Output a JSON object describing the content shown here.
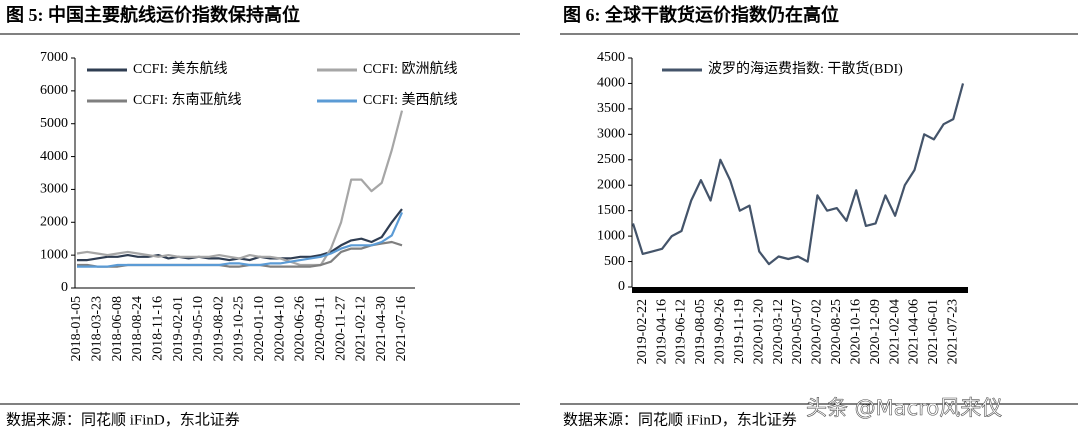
{
  "chart_data": [
    {
      "type": "line",
      "title": "图 5:  中国主要航线运价指数保持高位",
      "source": "数据来源：同花顺 iFinD，东北证券",
      "categories": [
        "2018-01-05",
        null,
        "2018-03-23",
        null,
        "2018-06-08",
        null,
        "2018-08-24",
        null,
        "2018-11-16",
        null,
        "2019-02-01",
        null,
        "2019-05-10",
        null,
        "2019-08-02",
        null,
        "2019-10-25",
        null,
        "2020-01-10",
        null,
        "2020-04-10",
        null,
        "2020-06-26",
        null,
        "2020-09-11",
        null,
        "2020-11-27",
        null,
        "2021-02-12",
        null,
        "2021-04-30",
        null,
        "2021-07-16"
      ],
      "series": [
        {
          "name": "CCFI: 美东航线",
          "color": "#2f3d52",
          "values": [
            850,
            850,
            900,
            950,
            950,
            1000,
            950,
            950,
            1000,
            900,
            950,
            900,
            950,
            900,
            900,
            850,
            900,
            850,
            950,
            900,
            900,
            900,
            950,
            950,
            1000,
            1100,
            1300,
            1450,
            1500,
            1400,
            1550,
            2000,
            2400
          ]
        },
        {
          "name": "CCFI: 欧洲航线",
          "color": "#a6a6a6",
          "values": [
            1050,
            1100,
            1050,
            1000,
            1050,
            1100,
            1050,
            1000,
            950,
            1000,
            950,
            950,
            950,
            950,
            1000,
            950,
            900,
            1000,
            950,
            950,
            900,
            800,
            700,
            700,
            700,
            1200,
            2000,
            3300,
            3300,
            2950,
            3200,
            4200,
            5400
          ]
        },
        {
          "name": "CCFI: 东南亚航线",
          "color": "#7f7f7f",
          "values": [
            700,
            700,
            650,
            650,
            650,
            700,
            700,
            700,
            700,
            700,
            700,
            700,
            700,
            700,
            700,
            650,
            650,
            700,
            700,
            650,
            650,
            650,
            650,
            650,
            700,
            800,
            1100,
            1200,
            1200,
            1300,
            1350,
            1400,
            1300
          ]
        },
        {
          "name": "CCFI: 美西航线",
          "color": "#5b9bd5",
          "values": [
            650,
            650,
            650,
            650,
            700,
            700,
            700,
            700,
            700,
            700,
            700,
            700,
            700,
            700,
            700,
            750,
            750,
            700,
            700,
            750,
            750,
            800,
            850,
            900,
            950,
            1050,
            1200,
            1300,
            1300,
            1300,
            1400,
            1600,
            2300
          ]
        }
      ],
      "ylim": [
        0,
        7000
      ],
      "yticks": [
        0,
        1000,
        2000,
        3000,
        4000,
        5000,
        6000,
        7000
      ],
      "legend": "top-left"
    },
    {
      "type": "line",
      "title": "图 6:  全球干散货运价指数仍在高位",
      "source": "数据来源：同花顺 iFinD，东北证券",
      "categories": [
        null,
        "2019-02-22",
        null,
        "2019-04-16",
        null,
        "2019-06-12",
        null,
        "2019-08-05",
        null,
        "2019-09-26",
        null,
        "2019-11-19",
        null,
        "2020-01-20",
        null,
        "2020-03-12",
        null,
        "2020-05-07",
        null,
        "2020-07-02",
        null,
        "2020-08-25",
        null,
        "2020-10-16",
        null,
        "2020-12-09",
        null,
        "2021-02-04",
        null,
        "2021-04-06",
        null,
        "2021-06-01",
        null,
        "2021-07-23",
        null
      ],
      "series": [
        {
          "name": "波罗的海运费指数: 干散货(BDI)",
          "color": "#44546a",
          "values": [
            1250,
            650,
            700,
            750,
            1000,
            1100,
            1700,
            2100,
            1700,
            2500,
            2100,
            1500,
            1600,
            700,
            450,
            600,
            550,
            600,
            500,
            1800,
            1500,
            1550,
            1300,
            1900,
            1200,
            1250,
            1800,
            1400,
            2000,
            2300,
            3000,
            2900,
            3200,
            3300,
            4000
          ]
        }
      ],
      "ylim": [
        0,
        4500
      ],
      "yticks": [
        0,
        500,
        1000,
        1500,
        2000,
        2500,
        3000,
        3500,
        4000,
        4500
      ],
      "legend": "top-left"
    }
  ],
  "watermark": "头条 @Macro风来仪"
}
